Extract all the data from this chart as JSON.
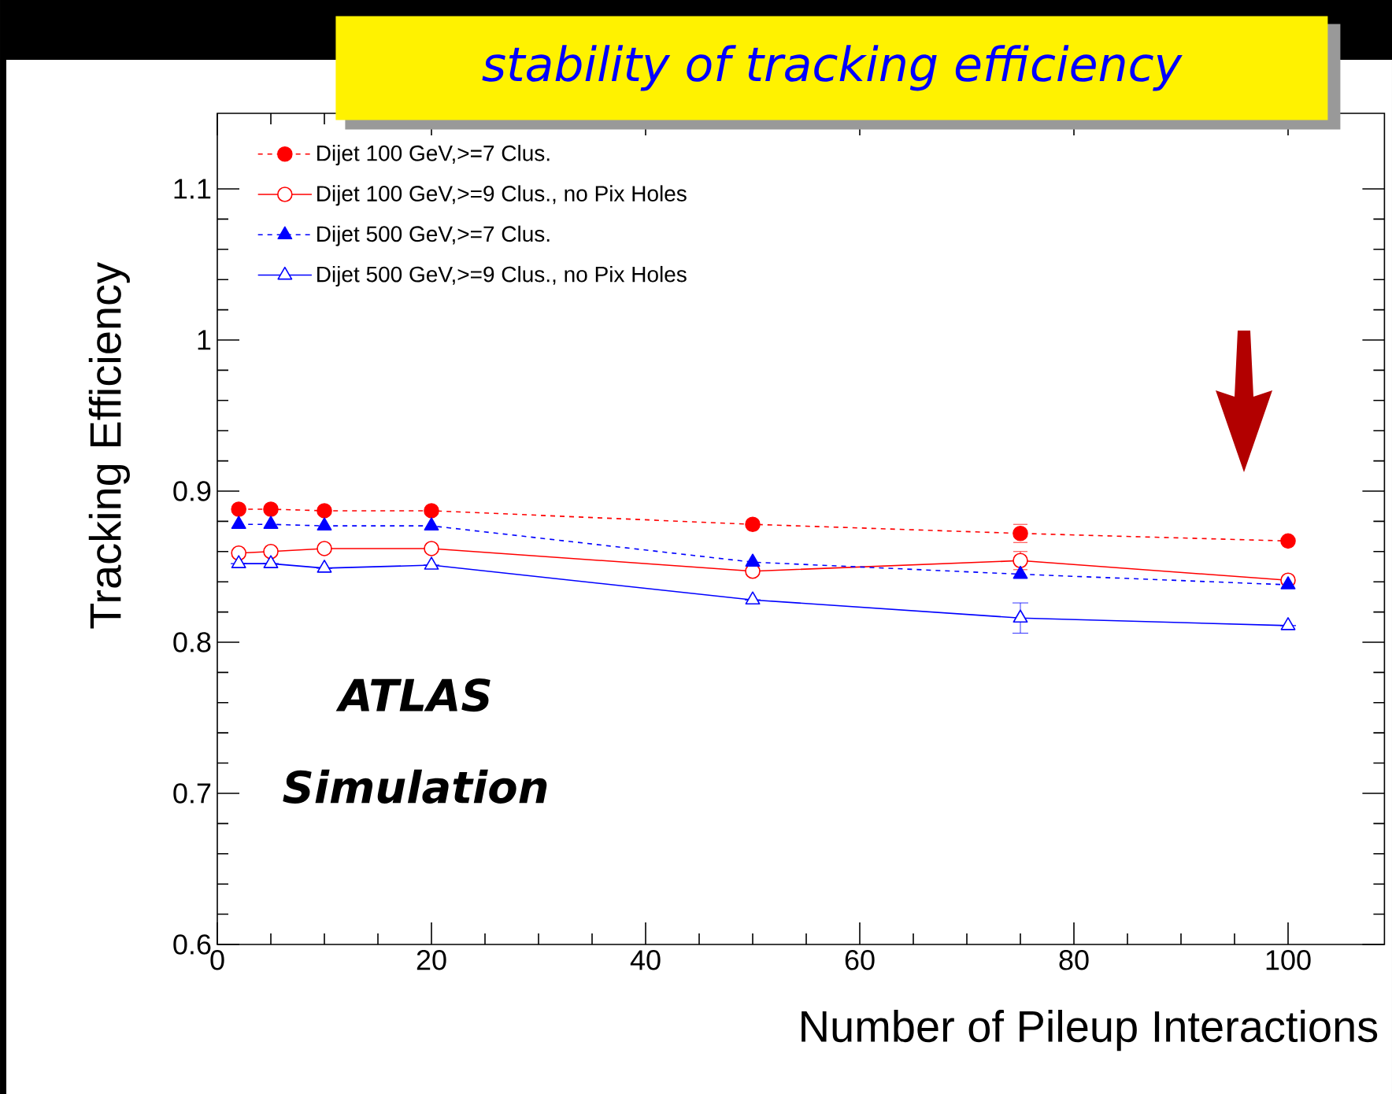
{
  "chart_data": {
    "type": "line",
    "title": "stability of tracking efficiency",
    "xlabel": "Number of Pileup Interactions",
    "ylabel": "Tracking Efficiency",
    "x": [
      2,
      5,
      10,
      20,
      50,
      75,
      100
    ],
    "series": [
      {
        "name": "Dijet 100 GeV,>=7 Clus.",
        "color": "#ff0000",
        "marker": "circle",
        "line_style": "dashed",
        "values": [
          0.888,
          0.888,
          0.887,
          0.887,
          0.878,
          0.872,
          0.867
        ],
        "errors": [
          null,
          null,
          null,
          null,
          null,
          0.006,
          null
        ]
      },
      {
        "name": "Dijet 100 GeV,>=9 Clus., no Pix Holes",
        "color": "#ff0000",
        "marker": "circle-open",
        "line_style": "solid",
        "values": [
          0.859,
          0.86,
          0.862,
          0.862,
          0.847,
          0.854,
          0.841
        ],
        "errors": [
          null,
          null,
          null,
          null,
          null,
          0.006,
          null
        ]
      },
      {
        "name": "Dijet 500 GeV,>=7 Clus.",
        "color": "#0000ff",
        "marker": "triangle",
        "line_style": "dashed",
        "values": [
          0.878,
          0.878,
          0.877,
          0.877,
          0.853,
          0.845,
          0.838
        ]
      },
      {
        "name": "Dijet 500 GeV,>=9 Clus., no Pix Holes",
        "color": "#0000ff",
        "marker": "triangle-open",
        "line_style": "solid",
        "values": [
          0.852,
          0.852,
          0.849,
          0.851,
          0.828,
          0.816,
          0.811
        ],
        "errors": [
          null,
          null,
          null,
          null,
          null,
          0.01,
          null
        ]
      }
    ],
    "xlim": [
      0,
      109
    ],
    "ylim": [
      0.6,
      1.15
    ],
    "xticks": [
      0,
      20,
      40,
      60,
      80,
      100
    ],
    "yticks": [
      {
        "value": 0.6,
        "label": "0.6"
      },
      {
        "value": 0.7,
        "label": "0.7"
      },
      {
        "value": 0.8,
        "label": "0.8"
      },
      {
        "value": 0.9,
        "label": "0.9"
      },
      {
        "value": 1.0,
        "label": "1"
      },
      {
        "value": 1.1,
        "label": "1.1"
      }
    ],
    "legend": "top left",
    "grid": false,
    "annotations": [
      "ATLAS",
      "Simulation"
    ]
  }
}
